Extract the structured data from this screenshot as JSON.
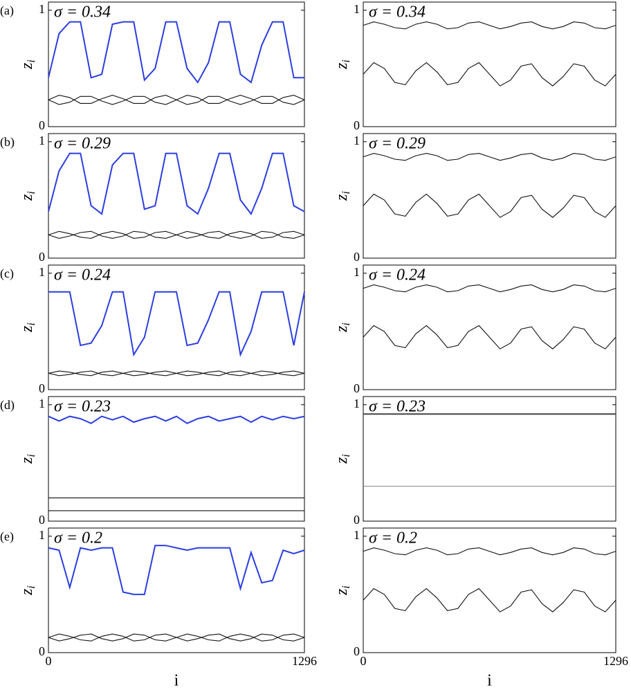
{
  "chart_data": [
    {
      "type": "line",
      "panel_label": "(a)",
      "annotation": "σ = 0.34",
      "ylabel": "z",
      "ylabel_sub": "i",
      "xlim": [
        0,
        1296
      ],
      "ylim": [
        0,
        1.07
      ],
      "yticks": [
        0,
        1
      ],
      "x": [
        0,
        54,
        108,
        162,
        216,
        270,
        324,
        378,
        432,
        486,
        540,
        594,
        648,
        702,
        756,
        810,
        864,
        918,
        972,
        1026,
        1080,
        1134,
        1188,
        1242,
        1296
      ],
      "series": [
        {
          "color": "#2b3de0",
          "values": [
            0.42,
            0.8,
            0.9,
            0.9,
            0.42,
            0.45,
            0.88,
            0.9,
            0.9,
            0.4,
            0.5,
            0.9,
            0.9,
            0.5,
            0.38,
            0.55,
            0.9,
            0.9,
            0.45,
            0.38,
            0.7,
            0.9,
            0.9,
            0.42,
            0.42
          ]
        },
        {
          "color": "#111111",
          "values": [
            0.23,
            0.27,
            0.25,
            0.2,
            0.2,
            0.24,
            0.27,
            0.24,
            0.2,
            0.2,
            0.25,
            0.27,
            0.23,
            0.19,
            0.21,
            0.26,
            0.26,
            0.22,
            0.19,
            0.22,
            0.26,
            0.26,
            0.21,
            0.19,
            0.23
          ]
        },
        {
          "color": "#111111",
          "values": [
            0.23,
            0.19,
            0.21,
            0.26,
            0.26,
            0.22,
            0.19,
            0.22,
            0.26,
            0.26,
            0.21,
            0.19,
            0.23,
            0.27,
            0.25,
            0.2,
            0.2,
            0.24,
            0.27,
            0.24,
            0.2,
            0.2,
            0.25,
            0.27,
            0.23
          ]
        }
      ]
    },
    {
      "type": "line",
      "annotation": "σ = 0.34",
      "ylabel": "z",
      "ylabel_sub": "i",
      "xlim": [
        0,
        1296
      ],
      "ylim": [
        0,
        1.07
      ],
      "yticks": [
        0,
        1
      ],
      "x": [
        0,
        54,
        108,
        162,
        216,
        270,
        324,
        378,
        432,
        486,
        540,
        594,
        648,
        702,
        756,
        810,
        864,
        918,
        972,
        1026,
        1080,
        1134,
        1188,
        1242,
        1296
      ],
      "series": [
        {
          "color": "#111111",
          "values": [
            0.87,
            0.9,
            0.88,
            0.85,
            0.84,
            0.88,
            0.9,
            0.88,
            0.84,
            0.85,
            0.89,
            0.9,
            0.87,
            0.84,
            0.86,
            0.89,
            0.9,
            0.86,
            0.84,
            0.86,
            0.9,
            0.89,
            0.85,
            0.84,
            0.87
          ]
        },
        {
          "color": "#111111",
          "values": [
            0.45,
            0.55,
            0.5,
            0.38,
            0.36,
            0.48,
            0.55,
            0.47,
            0.36,
            0.38,
            0.5,
            0.55,
            0.45,
            0.35,
            0.4,
            0.52,
            0.54,
            0.42,
            0.35,
            0.43,
            0.54,
            0.52,
            0.4,
            0.35,
            0.45
          ]
        }
      ]
    },
    {
      "type": "line",
      "panel_label": "(b)",
      "annotation": "σ = 0.29",
      "ylabel": "z",
      "ylabel_sub": "i",
      "xlim": [
        0,
        1296
      ],
      "ylim": [
        0,
        1.07
      ],
      "yticks": [
        0,
        1
      ],
      "x": [
        0,
        54,
        108,
        162,
        216,
        270,
        324,
        378,
        432,
        486,
        540,
        594,
        648,
        702,
        756,
        810,
        864,
        918,
        972,
        1026,
        1080,
        1134,
        1188,
        1242,
        1296
      ],
      "series": [
        {
          "color": "#2b3de0",
          "values": [
            0.4,
            0.75,
            0.9,
            0.9,
            0.45,
            0.38,
            0.8,
            0.9,
            0.9,
            0.42,
            0.45,
            0.9,
            0.9,
            0.45,
            0.38,
            0.6,
            0.9,
            0.9,
            0.5,
            0.38,
            0.6,
            0.9,
            0.9,
            0.45,
            0.4
          ]
        },
        {
          "color": "#111111",
          "values": [
            0.2,
            0.23,
            0.21,
            0.18,
            0.17,
            0.21,
            0.23,
            0.21,
            0.17,
            0.18,
            0.22,
            0.23,
            0.2,
            0.17,
            0.19,
            0.22,
            0.23,
            0.19,
            0.17,
            0.19,
            0.23,
            0.22,
            0.18,
            0.17,
            0.2
          ]
        },
        {
          "color": "#111111",
          "values": [
            0.2,
            0.17,
            0.19,
            0.22,
            0.23,
            0.19,
            0.17,
            0.19,
            0.23,
            0.22,
            0.18,
            0.17,
            0.2,
            0.23,
            0.21,
            0.18,
            0.17,
            0.21,
            0.23,
            0.21,
            0.17,
            0.18,
            0.22,
            0.23,
            0.2
          ]
        }
      ]
    },
    {
      "type": "line",
      "annotation": "σ = 0.29",
      "ylabel": "z",
      "ylabel_sub": "i",
      "xlim": [
        0,
        1296
      ],
      "ylim": [
        0,
        1.07
      ],
      "yticks": [
        0,
        1
      ],
      "x": [
        0,
        54,
        108,
        162,
        216,
        270,
        324,
        378,
        432,
        486,
        540,
        594,
        648,
        702,
        756,
        810,
        864,
        918,
        972,
        1026,
        1080,
        1134,
        1188,
        1242,
        1296
      ],
      "series": [
        {
          "color": "#111111",
          "values": [
            0.87,
            0.9,
            0.88,
            0.85,
            0.84,
            0.88,
            0.9,
            0.88,
            0.84,
            0.85,
            0.89,
            0.9,
            0.87,
            0.84,
            0.86,
            0.89,
            0.9,
            0.86,
            0.84,
            0.86,
            0.9,
            0.89,
            0.85,
            0.84,
            0.87
          ]
        },
        {
          "color": "#111111",
          "values": [
            0.45,
            0.55,
            0.5,
            0.38,
            0.36,
            0.48,
            0.55,
            0.47,
            0.36,
            0.38,
            0.5,
            0.55,
            0.45,
            0.35,
            0.4,
            0.52,
            0.54,
            0.42,
            0.35,
            0.43,
            0.54,
            0.52,
            0.4,
            0.35,
            0.45
          ]
        }
      ]
    },
    {
      "type": "line",
      "panel_label": "(c)",
      "annotation": "σ = 0.24",
      "ylabel": "z",
      "ylabel_sub": "i",
      "xlim": [
        0,
        1296
      ],
      "ylim": [
        0,
        1.07
      ],
      "yticks": [
        0,
        1
      ],
      "x": [
        0,
        54,
        108,
        162,
        216,
        270,
        324,
        378,
        432,
        486,
        540,
        594,
        648,
        702,
        756,
        810,
        864,
        918,
        972,
        1026,
        1080,
        1134,
        1188,
        1242,
        1296
      ],
      "series": [
        {
          "color": "#2b3de0",
          "values": [
            0.84,
            0.84,
            0.84,
            0.38,
            0.4,
            0.55,
            0.84,
            0.84,
            0.3,
            0.45,
            0.84,
            0.84,
            0.84,
            0.38,
            0.4,
            0.6,
            0.84,
            0.84,
            0.3,
            0.5,
            0.84,
            0.84,
            0.84,
            0.38,
            0.84
          ]
        },
        {
          "color": "#111111",
          "values": [
            0.14,
            0.16,
            0.15,
            0.13,
            0.12,
            0.15,
            0.16,
            0.14,
            0.12,
            0.13,
            0.15,
            0.16,
            0.14,
            0.12,
            0.13,
            0.15,
            0.16,
            0.13,
            0.12,
            0.14,
            0.16,
            0.15,
            0.13,
            0.12,
            0.14
          ]
        },
        {
          "color": "#111111",
          "values": [
            0.14,
            0.12,
            0.13,
            0.15,
            0.16,
            0.13,
            0.12,
            0.14,
            0.16,
            0.15,
            0.13,
            0.12,
            0.14,
            0.16,
            0.15,
            0.13,
            0.12,
            0.15,
            0.16,
            0.14,
            0.12,
            0.13,
            0.15,
            0.16,
            0.14
          ]
        }
      ]
    },
    {
      "type": "line",
      "annotation": "σ = 0.24",
      "ylabel": "z",
      "ylabel_sub": "i",
      "xlim": [
        0,
        1296
      ],
      "ylim": [
        0,
        1.07
      ],
      "yticks": [
        0,
        1
      ],
      "x": [
        0,
        54,
        108,
        162,
        216,
        270,
        324,
        378,
        432,
        486,
        540,
        594,
        648,
        702,
        756,
        810,
        864,
        918,
        972,
        1026,
        1080,
        1134,
        1188,
        1242,
        1296
      ],
      "series": [
        {
          "color": "#111111",
          "values": [
            0.87,
            0.9,
            0.88,
            0.85,
            0.84,
            0.88,
            0.9,
            0.88,
            0.84,
            0.85,
            0.89,
            0.9,
            0.87,
            0.84,
            0.86,
            0.89,
            0.9,
            0.86,
            0.84,
            0.86,
            0.9,
            0.89,
            0.85,
            0.84,
            0.87
          ]
        },
        {
          "color": "#111111",
          "values": [
            0.45,
            0.55,
            0.5,
            0.38,
            0.36,
            0.48,
            0.55,
            0.47,
            0.36,
            0.38,
            0.5,
            0.55,
            0.45,
            0.35,
            0.4,
            0.52,
            0.54,
            0.42,
            0.35,
            0.43,
            0.54,
            0.52,
            0.4,
            0.35,
            0.45
          ]
        }
      ]
    },
    {
      "type": "line",
      "panel_label": "(d)",
      "annotation": "σ = 0.23",
      "ylabel": "z",
      "ylabel_sub": "i",
      "xlim": [
        0,
        1296
      ],
      "ylim": [
        0,
        1.07
      ],
      "yticks": [
        0,
        1
      ],
      "x": [
        0,
        54,
        108,
        162,
        216,
        270,
        324,
        378,
        432,
        486,
        540,
        594,
        648,
        702,
        756,
        810,
        864,
        918,
        972,
        1026,
        1080,
        1134,
        1188,
        1242,
        1296
      ],
      "series": [
        {
          "color": "#2b3de0",
          "values": [
            0.9,
            0.86,
            0.9,
            0.88,
            0.84,
            0.9,
            0.87,
            0.9,
            0.85,
            0.88,
            0.9,
            0.86,
            0.9,
            0.84,
            0.88,
            0.9,
            0.86,
            0.88,
            0.9,
            0.85,
            0.9,
            0.87,
            0.9,
            0.88,
            0.9
          ]
        },
        {
          "color": "#111111",
          "values": [
            0.2,
            0.2,
            0.2,
            0.2,
            0.2,
            0.2,
            0.2,
            0.2,
            0.2,
            0.2,
            0.2,
            0.2,
            0.2,
            0.2,
            0.2,
            0.2,
            0.2,
            0.2,
            0.2,
            0.2,
            0.2,
            0.2,
            0.2,
            0.2,
            0.2
          ]
        },
        {
          "color": "#111111",
          "values": [
            0.09,
            0.09,
            0.09,
            0.09,
            0.09,
            0.09,
            0.09,
            0.09,
            0.09,
            0.09,
            0.09,
            0.09,
            0.09,
            0.09,
            0.09,
            0.09,
            0.09,
            0.09,
            0.09,
            0.09,
            0.09,
            0.09,
            0.09,
            0.09,
            0.09
          ]
        }
      ]
    },
    {
      "type": "line",
      "annotation": "σ = 0.23",
      "ylabel": "z",
      "ylabel_sub": "i",
      "xlim": [
        0,
        1296
      ],
      "ylim": [
        0,
        1.07
      ],
      "yticks": [
        0,
        1
      ],
      "x": [
        0,
        54,
        108,
        162,
        216,
        270,
        324,
        378,
        432,
        486,
        540,
        594,
        648,
        702,
        756,
        810,
        864,
        918,
        972,
        1026,
        1080,
        1134,
        1188,
        1242,
        1296
      ],
      "series": [
        {
          "color": "#444444",
          "values": [
            0.92,
            0.92,
            0.92,
            0.92,
            0.92,
            0.92,
            0.92,
            0.92,
            0.92,
            0.92,
            0.92,
            0.92,
            0.92,
            0.92,
            0.92,
            0.92,
            0.92,
            0.92,
            0.92,
            0.92,
            0.92,
            0.92,
            0.92,
            0.92,
            0.92
          ]
        },
        {
          "color": "#888888",
          "values": [
            0.3,
            0.3,
            0.3,
            0.3,
            0.3,
            0.3,
            0.3,
            0.3,
            0.3,
            0.3,
            0.3,
            0.3,
            0.3,
            0.3,
            0.3,
            0.3,
            0.3,
            0.3,
            0.3,
            0.3,
            0.3,
            0.3,
            0.3,
            0.3,
            0.3
          ]
        }
      ]
    },
    {
      "type": "line",
      "panel_label": "(e)",
      "annotation": "σ = 0.2",
      "ylabel": "z",
      "ylabel_sub": "i",
      "xlabel": "i",
      "xlim": [
        0,
        1296
      ],
      "ylim": [
        0,
        1.07
      ],
      "yticks": [
        0,
        1
      ],
      "xticks": [
        0,
        1296
      ],
      "x": [
        0,
        54,
        108,
        162,
        216,
        270,
        324,
        378,
        432,
        486,
        540,
        594,
        648,
        702,
        756,
        810,
        864,
        918,
        972,
        1026,
        1080,
        1134,
        1188,
        1242,
        1296
      ],
      "series": [
        {
          "color": "#2b3de0",
          "values": [
            0.9,
            0.88,
            0.56,
            0.9,
            0.88,
            0.9,
            0.9,
            0.52,
            0.5,
            0.5,
            0.92,
            0.92,
            0.9,
            0.88,
            0.9,
            0.9,
            0.9,
            0.9,
            0.55,
            0.86,
            0.6,
            0.62,
            0.88,
            0.85,
            0.88
          ]
        },
        {
          "color": "#111111",
          "values": [
            0.13,
            0.16,
            0.14,
            0.11,
            0.1,
            0.14,
            0.16,
            0.14,
            0.1,
            0.11,
            0.15,
            0.16,
            0.13,
            0.1,
            0.12,
            0.15,
            0.16,
            0.12,
            0.1,
            0.12,
            0.16,
            0.15,
            0.11,
            0.1,
            0.13
          ]
        },
        {
          "color": "#111111",
          "values": [
            0.13,
            0.1,
            0.12,
            0.15,
            0.16,
            0.12,
            0.1,
            0.12,
            0.16,
            0.15,
            0.11,
            0.1,
            0.13,
            0.16,
            0.14,
            0.11,
            0.1,
            0.14,
            0.16,
            0.14,
            0.1,
            0.11,
            0.15,
            0.16,
            0.13
          ]
        }
      ]
    },
    {
      "type": "line",
      "annotation": "σ = 0.2",
      "ylabel": "z",
      "ylabel_sub": "i",
      "xlabel": "i",
      "xlim": [
        0,
        1296
      ],
      "ylim": [
        0,
        1.07
      ],
      "yticks": [
        0,
        1
      ],
      "xticks": [
        0,
        1296
      ],
      "x": [
        0,
        54,
        108,
        162,
        216,
        270,
        324,
        378,
        432,
        486,
        540,
        594,
        648,
        702,
        756,
        810,
        864,
        918,
        972,
        1026,
        1080,
        1134,
        1188,
        1242,
        1296
      ],
      "series": [
        {
          "color": "#111111",
          "values": [
            0.87,
            0.9,
            0.88,
            0.85,
            0.84,
            0.88,
            0.9,
            0.88,
            0.84,
            0.85,
            0.89,
            0.9,
            0.87,
            0.84,
            0.86,
            0.89,
            0.9,
            0.86,
            0.84,
            0.86,
            0.9,
            0.89,
            0.85,
            0.84,
            0.87
          ]
        },
        {
          "color": "#111111",
          "values": [
            0.45,
            0.55,
            0.5,
            0.38,
            0.36,
            0.48,
            0.55,
            0.47,
            0.36,
            0.38,
            0.5,
            0.55,
            0.45,
            0.35,
            0.4,
            0.52,
            0.54,
            0.42,
            0.35,
            0.43,
            0.54,
            0.52,
            0.4,
            0.35,
            0.45
          ]
        }
      ]
    }
  ]
}
